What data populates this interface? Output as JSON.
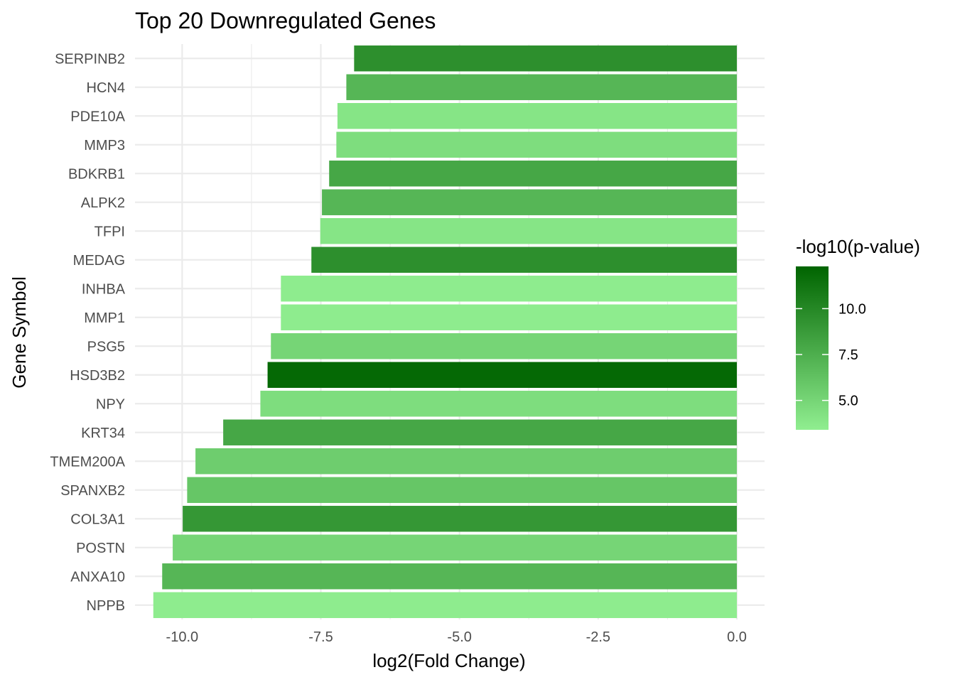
{
  "chart_data": {
    "type": "bar",
    "orientation": "horizontal",
    "title": "Top 20 Downregulated Genes",
    "xlabel": "log2(Fold Change)",
    "ylabel": "Gene Symbol",
    "xlim": [
      -10.85,
      0.5
    ],
    "xticks": [
      -10.0,
      -7.5,
      -5.0,
      -2.5,
      0.0
    ],
    "xtick_labels": [
      "-10.0",
      "-7.5",
      "-5.0",
      "-2.5",
      "0.0"
    ],
    "grid": true,
    "categories": [
      "SERPINB2",
      "HCN4",
      "PDE10A",
      "MMP3",
      "BDKRB1",
      "ALPK2",
      "TFPI",
      "MEDAG",
      "INHBA",
      "MMP1",
      "PSG5",
      "HSD3B2",
      "NPY",
      "KRT34",
      "TMEM200A",
      "SPANXB2",
      "COL3A1",
      "POSTN",
      "ANXA10",
      "NPPB"
    ],
    "values": [
      -6.9,
      -7.04,
      -7.2,
      -7.22,
      -7.35,
      -7.48,
      -7.51,
      -7.67,
      -8.22,
      -8.22,
      -8.4,
      -8.46,
      -8.59,
      -9.26,
      -9.76,
      -9.91,
      -9.99,
      -10.17,
      -10.36,
      -10.52
    ],
    "color_values": [
      9.5,
      7.0,
      4.0,
      4.5,
      8.0,
      7.0,
      4.0,
      9.5,
      3.5,
      3.5,
      5.0,
      12.0,
      4.5,
      8.0,
      5.5,
      6.0,
      9.0,
      5.0,
      7.0,
      3.5
    ],
    "legend": {
      "title": "-log10(p-value)",
      "placement": "right",
      "range": [
        3.4,
        12.3
      ],
      "ticks": [
        5.0,
        7.5,
        10.0
      ],
      "tick_labels": [
        "5.0",
        "7.5",
        "10.0"
      ],
      "color_low": "#90ee90",
      "color_high": "#006400"
    }
  }
}
